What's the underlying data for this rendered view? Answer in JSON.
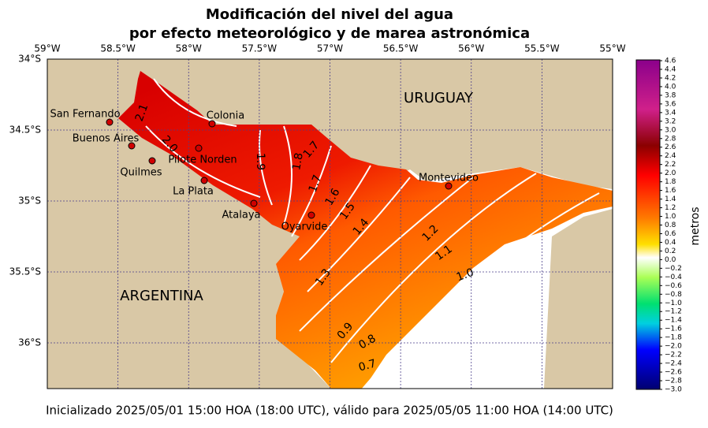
{
  "title": [
    "Modificación del nivel del agua",
    "por efecto meteorológico y de marea astronómica"
  ],
  "x_ticks": [
    "59°W",
    "58.5°W",
    "58°W",
    "57.5°W",
    "57°W",
    "56.5°W",
    "56°W",
    "55.5°W",
    "55°W"
  ],
  "y_ticks": [
    "34°S",
    "34.5°S",
    "35°S",
    "35.5°S",
    "36°S"
  ],
  "countries": [
    "URUGUAY",
    "ARGENTINA"
  ],
  "cities": [
    "San Fernando",
    "Buenos Aires",
    "Colonia",
    "Pilote Norden",
    "Quilmes",
    "La Plata",
    "Atalaya",
    "Oyarvide",
    "Montevideo"
  ],
  "contour_labels": [
    "2.1",
    "2.0",
    "1.9",
    "1.8",
    "1.7",
    "1.7",
    "1.6",
    "1.5",
    "1.4",
    "1.3",
    "1.2",
    "1.1",
    "1.0",
    "0.9",
    "0.8",
    "0.7"
  ],
  "colorbar": {
    "label": "metros",
    "ticks": [
      "4.6",
      "4.4",
      "4.2",
      "4.0",
      "3.8",
      "3.6",
      "3.4",
      "3.2",
      "3.0",
      "2.8",
      "2.6",
      "2.4",
      "2.2",
      "2.0",
      "1.8",
      "1.6",
      "1.4",
      "1.2",
      "1.0",
      "0.8",
      "0.6",
      "0.4",
      "0.2",
      "0.0",
      "−0.2",
      "−0.4",
      "−0.6",
      "−0.8",
      "−1.0",
      "−1.2",
      "−1.4",
      "−1.6",
      "−1.8",
      "−2.0",
      "−2.2",
      "−2.4",
      "−2.6",
      "−2.8",
      "−3.0"
    ]
  },
  "footer": "Inicializado 2025/05/01 15:00 HOA (18:00 UTC), válido para 2025/05/05 11:00 HOA (14:00 UTC)"
}
